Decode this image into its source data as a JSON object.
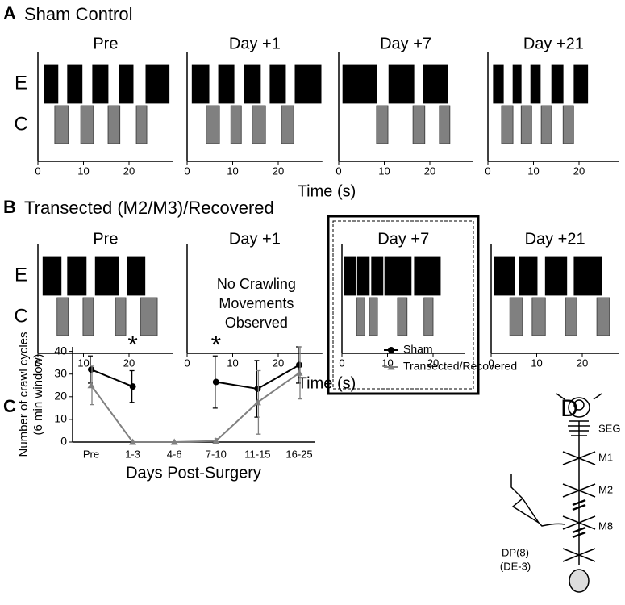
{
  "panels": [
    {
      "label": "A",
      "title": "Sham Control",
      "row_labels": [
        "E",
        "C"
      ],
      "xlabel": "Time (s)",
      "charts": [
        {
          "type": "raster",
          "title": "Pre",
          "xlim": [
            0,
            29.7
          ],
          "xticks": [
            0,
            10,
            20
          ],
          "rows": [
            {
              "color": "#000000",
              "bursts": [
                [
                  1.4,
                  4.4
                ],
                [
                  6.5,
                  9.7
                ],
                [
                  12,
                  15.4
                ],
                [
                  17.9,
                  20.9
                ],
                [
                  23.7,
                  28.8
                ]
              ]
            },
            {
              "color": "#808080",
              "bursts": [
                [
                  3.7,
                  6.7
                ],
                [
                  9.4,
                  12.2
                ],
                [
                  15.4,
                  18
                ],
                [
                  21.6,
                  23.9
                ]
              ]
            }
          ]
        },
        {
          "type": "raster",
          "title": "Day +1",
          "xlim": [
            0,
            29.7
          ],
          "xticks": [
            0,
            10,
            20
          ],
          "rows": [
            {
              "color": "#000000",
              "bursts": [
                [
                  1.1,
                  4.8
                ],
                [
                  6.9,
                  10.3
                ],
                [
                  12.6,
                  16.1
                ],
                [
                  18.2,
                  21.6
                ],
                [
                  23.7,
                  29.4
                ]
              ]
            },
            {
              "color": "#808080",
              "bursts": [
                [
                  4.2,
                  7.1
                ],
                [
                  9.6,
                  11.9
                ],
                [
                  14.3,
                  17.2
                ],
                [
                  20.7,
                  23.4
                ]
              ]
            }
          ]
        },
        {
          "type": "raster",
          "title": "Day +7",
          "xlim": [
            0,
            29.4
          ],
          "xticks": [
            0,
            10,
            20
          ],
          "rows": [
            {
              "color": "#000000",
              "bursts": [
                [
                  0.9,
                  8.3
                ],
                [
                  11,
                  16.5
                ],
                [
                  18.6,
                  23.9
                ]
              ]
            },
            {
              "color": "#808080",
              "bursts": [
                [
                  8.3,
                  10.8
                ],
                [
                  16.3,
                  18.9
                ],
                [
                  22.1,
                  24.4
                ]
              ]
            }
          ]
        },
        {
          "type": "raster",
          "title": "Day +21",
          "xlim": [
            0,
            28.8
          ],
          "xticks": [
            0,
            10,
            20
          ],
          "rows": [
            {
              "color": "#000000",
              "bursts": [
                [
                  1.2,
                  3.4
                ],
                [
                  5.5,
                  7.3
                ],
                [
                  9.4,
                  11.5
                ],
                [
                  14,
                  16.5
                ],
                [
                  18.9,
                  21.9
                ]
              ]
            },
            {
              "color": "#808080",
              "bursts": [
                [
                  3,
                  5.5
                ],
                [
                  7.3,
                  9.6
                ],
                [
                  11.7,
                  14
                ],
                [
                  16.5,
                  18.8
                ]
              ]
            }
          ]
        }
      ]
    },
    {
      "label": "B",
      "title": "Transected (M2/M3)/Recovered",
      "row_labels": [
        "E",
        "C"
      ],
      "xlabel": "Time (s)",
      "charts": [
        {
          "type": "raster",
          "title": "Pre",
          "xlim": [
            0,
            29.7
          ],
          "xticks": [
            0,
            10,
            20
          ],
          "rows": [
            {
              "color": "#000000",
              "bursts": [
                [
                  1.1,
                  5.1
                ],
                [
                  6.5,
                  10.6
                ],
                [
                  12.6,
                  17.7
                ],
                [
                  19.6,
                  23.5
                ]
              ]
            },
            {
              "color": "#808080",
              "bursts": [
                [
                  4.2,
                  6.7
                ],
                [
                  9.9,
                  12.2
                ],
                [
                  17,
                  19.3
                ],
                [
                  22.5,
                  26.2
                ]
              ]
            }
          ]
        },
        {
          "type": "raster",
          "title": "Day +1",
          "xlim": [
            0,
            29.7
          ],
          "xticks": [
            0,
            10,
            20
          ],
          "rows": [],
          "note_lines": [
            "No Crawling",
            "Movements",
            "Observed"
          ]
        },
        {
          "type": "raster",
          "title": "Day +7",
          "xlim": [
            0,
            27
          ],
          "xticks": [
            0,
            10,
            20
          ],
          "highlight": true,
          "rows": [
            {
              "color": "#000000",
              "bursts": [
                [
                  0.5,
                  3
                ],
                [
                  3.4,
                  6
                ],
                [
                  6.5,
                  9
                ],
                [
                  9.4,
                  15.2
                ],
                [
                  15.9,
                  21.6
                ]
              ]
            },
            {
              "color": "#808080",
              "bursts": [
                [
                  3.2,
                  5
                ],
                [
                  6,
                  7.8
                ],
                [
                  12.2,
                  14.3
                ],
                [
                  18,
                  20
                ]
              ]
            }
          ]
        },
        {
          "type": "raster",
          "title": "Day +21",
          "xlim": [
            0,
            28
          ],
          "xticks": [
            0,
            10,
            20
          ],
          "rows": [
            {
              "color": "#000000",
              "bursts": [
                [
                  0.7,
                  5.1
                ],
                [
                  6.2,
                  10.1
                ],
                [
                  11.9,
                  16.6
                ],
                [
                  18.2,
                  24.2
                ]
              ]
            },
            {
              "color": "#808080",
              "bursts": [
                [
                  4.1,
                  6.9
                ],
                [
                  9,
                  11.9
                ],
                [
                  16.3,
                  18.8
                ],
                [
                  23.2,
                  26
                ]
              ]
            }
          ]
        }
      ]
    }
  ],
  "chart_data": {
    "type": "line",
    "panel_label": "C",
    "ylabel_lines": [
      "Number of crawl cycles",
      "(6 min window)"
    ],
    "xlabel": "Days Post-Surgery",
    "categories": [
      "Pre",
      "1-3",
      "4-6",
      "7-10",
      "11-15",
      "16-25"
    ],
    "ylim": [
      0,
      42
    ],
    "yticks": [
      0,
      10,
      20,
      30,
      40
    ],
    "series": [
      {
        "name": "Sham",
        "color": "#000000",
        "marker": "circle",
        "values": [
          32,
          24.5,
          null,
          26.5,
          23.5,
          34
        ],
        "errors": [
          6,
          7,
          null,
          11.5,
          12.5,
          8
        ]
      },
      {
        "name": "Transected/Recovered",
        "color": "#808080",
        "marker": "triangle",
        "values": [
          25,
          0,
          0,
          0.5,
          17.5,
          30.5
        ],
        "errors": [
          8.5,
          0,
          0,
          1,
          14,
          11.5
        ]
      }
    ],
    "annotations": [
      {
        "text": "*",
        "x": "1-3"
      },
      {
        "text": "*",
        "x": "7-10"
      }
    ]
  },
  "diagram": {
    "label": "D",
    "ganglia": [
      "SEG",
      "M1",
      "M2",
      "M8"
    ],
    "electrode_lines": [
      "DP(8)",
      "(DE-3)"
    ]
  }
}
